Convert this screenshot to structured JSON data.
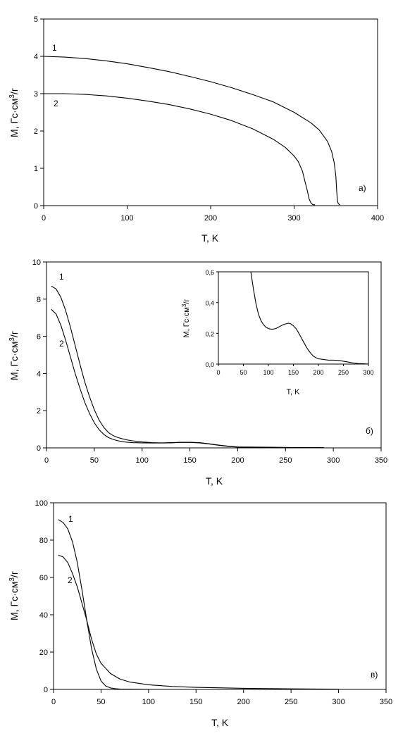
{
  "chart_data": [
    {
      "type": "line",
      "panel_label": "а)",
      "xlabel": "T, K",
      "ylabel": "M, Гс·см",
      "ylabel_sup": "3",
      "ylabel_tail": "/г",
      "xlim": [
        0,
        400
      ],
      "ylim": [
        0,
        5
      ],
      "xticks": [
        "0",
        "100",
        "200",
        "300",
        "400"
      ],
      "yticks": [
        "0",
        "1",
        "2",
        "3",
        "4",
        "5"
      ],
      "grid": false,
      "series": [
        {
          "label": "1",
          "x": [
            0,
            25,
            50,
            75,
            100,
            125,
            150,
            175,
            200,
            225,
            250,
            275,
            300,
            320,
            330,
            340,
            345,
            348,
            350,
            351,
            352,
            353,
            355
          ],
          "y": [
            4.0,
            3.98,
            3.94,
            3.88,
            3.8,
            3.7,
            3.59,
            3.46,
            3.32,
            3.16,
            2.98,
            2.78,
            2.5,
            2.22,
            2.03,
            1.72,
            1.45,
            1.15,
            0.78,
            0.4,
            0.12,
            0.05,
            0.02
          ]
        },
        {
          "label": "2",
          "x": [
            0,
            25,
            50,
            75,
            100,
            125,
            150,
            175,
            200,
            225,
            250,
            275,
            290,
            300,
            305,
            310,
            313,
            316,
            318,
            320,
            322,
            325
          ],
          "y": [
            3.0,
            3.0,
            2.98,
            2.94,
            2.88,
            2.8,
            2.71,
            2.59,
            2.45,
            2.28,
            2.06,
            1.78,
            1.55,
            1.33,
            1.18,
            0.92,
            0.65,
            0.38,
            0.18,
            0.08,
            0.03,
            0.02
          ]
        }
      ]
    },
    {
      "type": "line",
      "panel_label": "б)",
      "xlabel": "T, K",
      "ylabel": "M, Гс·см",
      "ylabel_sup": "3",
      "ylabel_tail": "/г",
      "xlim": [
        0,
        350
      ],
      "ylim": [
        0,
        10
      ],
      "xticks": [
        "0",
        "50",
        "100",
        "150",
        "200",
        "250",
        "300",
        "350"
      ],
      "yticks": [
        "0",
        "2",
        "4",
        "6",
        "8",
        "10"
      ],
      "grid": false,
      "series": [
        {
          "label": "1",
          "x": [
            5,
            10,
            15,
            20,
            25,
            30,
            35,
            40,
            45,
            50,
            55,
            60,
            65,
            70,
            75,
            80,
            85,
            90,
            100,
            110,
            120,
            130,
            140,
            150,
            160,
            170,
            180,
            190,
            200,
            220,
            240,
            260,
            280,
            290
          ],
          "y": [
            8.7,
            8.55,
            8.1,
            7.4,
            6.5,
            5.5,
            4.5,
            3.55,
            2.75,
            2.05,
            1.5,
            1.1,
            0.82,
            0.65,
            0.55,
            0.48,
            0.42,
            0.38,
            0.32,
            0.28,
            0.27,
            0.28,
            0.3,
            0.3,
            0.28,
            0.22,
            0.15,
            0.09,
            0.05,
            0.04,
            0.03,
            0.02,
            0.01,
            0.01
          ]
        },
        {
          "label": "2",
          "x": [
            5,
            10,
            15,
            20,
            25,
            30,
            35,
            40,
            45,
            50,
            55,
            60,
            65,
            70,
            75,
            80,
            85,
            90,
            100,
            110,
            120,
            130,
            140,
            150,
            160,
            170,
            180,
            190,
            200,
            220,
            240,
            260,
            280,
            290
          ],
          "y": [
            7.45,
            7.2,
            6.6,
            5.8,
            4.9,
            4.0,
            3.2,
            2.45,
            1.85,
            1.35,
            0.98,
            0.72,
            0.55,
            0.45,
            0.38,
            0.33,
            0.3,
            0.28,
            0.27,
            0.26,
            0.26,
            0.27,
            0.29,
            0.29,
            0.27,
            0.21,
            0.14,
            0.08,
            0.04,
            0.03,
            0.02,
            0.02,
            0.01,
            0.01
          ]
        }
      ],
      "inset": {
        "xlabel": "T, K",
        "ylabel": "M, Гс·см",
        "ylabel_sup": "3",
        "ylabel_tail": "/г",
        "xlim": [
          0,
          300
        ],
        "ylim": [
          0,
          0.7
        ],
        "xticks": [
          "0",
          "50",
          "100",
          "150",
          "200",
          "250",
          "300"
        ],
        "yticks": [
          "0,0",
          "0,2",
          "0,4",
          "0,6"
        ],
        "x": [
          65,
          70,
          75,
          80,
          85,
          90,
          95,
          100,
          105,
          110,
          115,
          120,
          125,
          130,
          135,
          140,
          145,
          150,
          155,
          160,
          165,
          170,
          175,
          180,
          185,
          190,
          195,
          200,
          210,
          220,
          230,
          240,
          250,
          260,
          270,
          280,
          290,
          300
        ],
        "y": [
          0.7,
          0.57,
          0.46,
          0.38,
          0.33,
          0.3,
          0.28,
          0.27,
          0.265,
          0.265,
          0.27,
          0.28,
          0.29,
          0.3,
          0.305,
          0.31,
          0.305,
          0.29,
          0.27,
          0.24,
          0.205,
          0.17,
          0.135,
          0.105,
          0.08,
          0.06,
          0.048,
          0.04,
          0.035,
          0.03,
          0.03,
          0.028,
          0.022,
          0.015,
          0.008,
          0.004,
          0.002,
          0.0
        ]
      }
    },
    {
      "type": "line",
      "panel_label": "в)",
      "xlabel": "T, K",
      "ylabel": "M, Гс·см",
      "ylabel_sup": "3",
      "ylabel_tail": "/г",
      "xlim": [
        0,
        350
      ],
      "ylim": [
        0,
        100
      ],
      "xticks": [
        "0",
        "50",
        "100",
        "150",
        "200",
        "250",
        "300",
        "350"
      ],
      "yticks": [
        "0",
        "20",
        "40",
        "60",
        "80",
        "100"
      ],
      "grid": false,
      "series": [
        {
          "label": "1",
          "x": [
            5,
            10,
            15,
            20,
            25,
            30,
            35,
            40,
            45,
            50,
            55,
            60,
            65,
            70,
            80,
            100
          ],
          "y": [
            91,
            89.5,
            86,
            79,
            68,
            53,
            37,
            22,
            11,
            4.5,
            1.8,
            0.8,
            0.4,
            0.2,
            0.1,
            0.05
          ]
        },
        {
          "label": "2",
          "x": [
            5,
            10,
            15,
            20,
            25,
            30,
            35,
            40,
            45,
            50,
            60,
            70,
            80,
            100,
            125,
            150,
            200,
            250,
            300
          ],
          "y": [
            72,
            71,
            68,
            62,
            55,
            46,
            37,
            27,
            19,
            14,
            8.5,
            5.5,
            4,
            2.5,
            1.6,
            1.1,
            0.6,
            0.3,
            0.1
          ]
        }
      ]
    }
  ]
}
